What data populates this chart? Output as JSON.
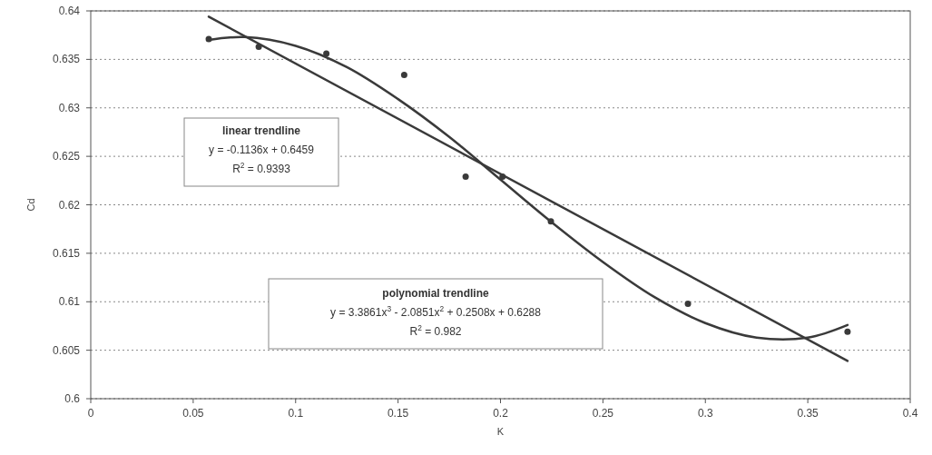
{
  "chart_data": {
    "type": "scatter",
    "xlabel": "K",
    "ylabel": "Cd",
    "xlim": [
      0,
      0.4
    ],
    "ylim": [
      0.6,
      0.64
    ],
    "xticks": [
      0,
      0.05,
      0.1,
      0.15,
      0.2,
      0.25,
      0.3,
      0.35,
      0.4
    ],
    "yticks": [
      0.6,
      0.605,
      0.61,
      0.615,
      0.62,
      0.625,
      0.63,
      0.635,
      0.64
    ],
    "grid": "y",
    "series": [
      {
        "marker": "circle",
        "color": "#3a3a3a",
        "x": [
          0.0576,
          0.082,
          0.115,
          0.153,
          0.183,
          0.201,
          0.2246,
          0.2915,
          0.3694
        ],
        "values": [
          0.6371,
          0.6363,
          0.6356,
          0.6334,
          0.6229,
          0.6229,
          0.6183,
          0.6098,
          0.6069
        ]
      },
      {
        "type": "line",
        "color": "#3a3a3a",
        "x": [
          0.0576,
          0.3694
        ],
        "values": [
          0.6394,
          0.6039
        ]
      },
      {
        "type": "line",
        "color": "#3a3a3a",
        "x": [
          0.0576,
          0.075,
          0.1,
          0.125,
          0.15,
          0.175,
          0.2,
          0.225,
          0.25,
          0.275,
          0.3,
          0.325,
          0.35,
          0.3694
        ],
        "values": [
          0.637,
          0.6373,
          0.6364,
          0.6342,
          0.6309,
          0.627,
          0.6226,
          0.6182,
          0.6141,
          0.6105,
          0.6078,
          0.6063,
          0.6063,
          0.6076
        ]
      }
    ],
    "annotations": [
      "linear trendline",
      "y = -0.1136x + 0.6459",
      "R$^{2}$ = 0.9393",
      "polynomial trendline",
      "y = 3.3861x$^{3}$ - 2.0851x$^{2}$ + 0.2508x + 0.6288",
      "R$^{2}$ = 0.982"
    ]
  }
}
